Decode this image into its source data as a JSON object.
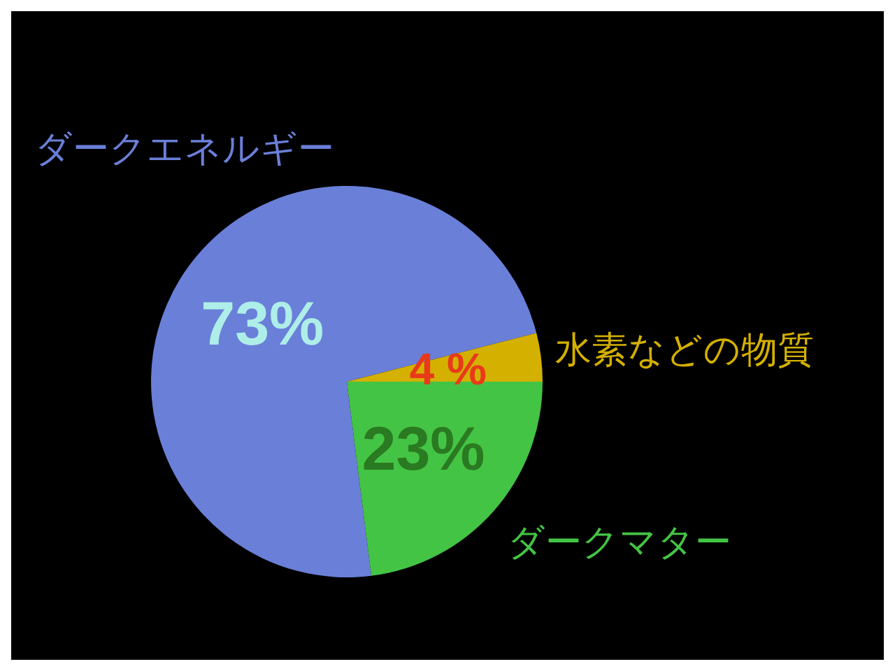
{
  "chart_data": {
    "type": "pie",
    "categories": [
      "ダークエネルギー",
      "ダークマター",
      "水素などの物質"
    ],
    "values": [
      73,
      23,
      4
    ],
    "colors": [
      "#6a7fd8",
      "#44c444",
      "#d4b000"
    ],
    "value_labels": [
      "73%",
      "23%",
      "4 %"
    ]
  }
}
